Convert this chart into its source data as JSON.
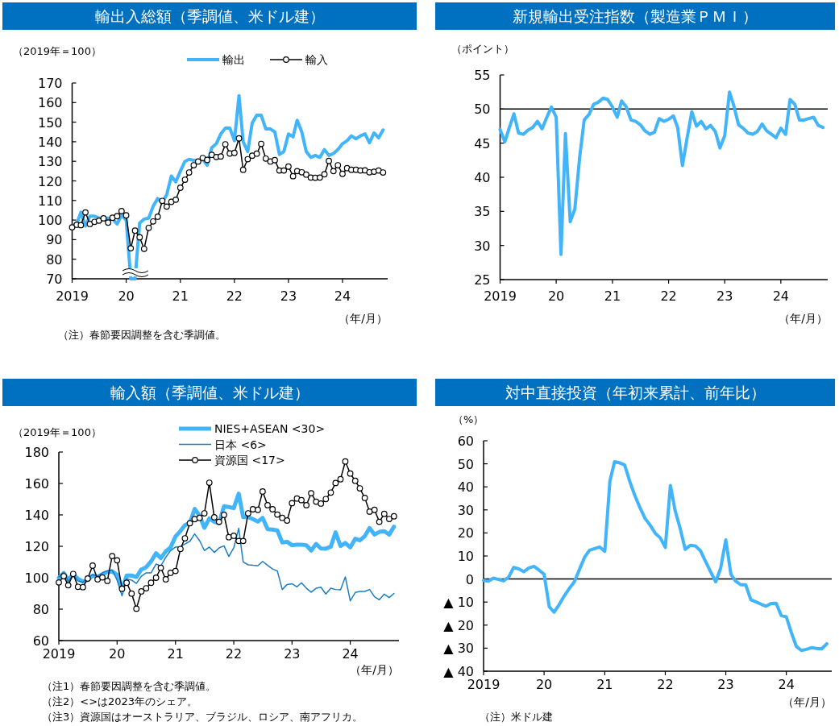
{
  "chart_data": [
    {
      "type": "line",
      "title": "輸出入総額（季調値、米ドル建）",
      "ylabel": "（2019年＝100）",
      "xlabel": "（年/月）",
      "legend": "top",
      "x": [
        "2019-01",
        "2019-02",
        "2019-03",
        "2019-04",
        "2019-05",
        "2019-06",
        "2019-07",
        "2019-08",
        "2019-09",
        "2019-10",
        "2019-11",
        "2019-12",
        "2020-01",
        "2020-02",
        "2020-03",
        "2020-04",
        "2020-05",
        "2020-06",
        "2020-07",
        "2020-08",
        "2020-09",
        "2020-10",
        "2020-11",
        "2020-12",
        "2021-01",
        "2021-02",
        "2021-03",
        "2021-04",
        "2021-05",
        "2021-06",
        "2021-07",
        "2021-08",
        "2021-09",
        "2021-10",
        "2021-11",
        "2021-12",
        "2022-01",
        "2022-02",
        "2022-03",
        "2022-04",
        "2022-05",
        "2022-06",
        "2022-07",
        "2022-08",
        "2022-09",
        "2022-10",
        "2022-11",
        "2022-12",
        "2023-01",
        "2023-02",
        "2023-03",
        "2023-04",
        "2023-05",
        "2023-06",
        "2023-07",
        "2023-08",
        "2023-09",
        "2023-10",
        "2023-11",
        "2023-12",
        "2024-01",
        "2024-02",
        "2024-03",
        "2024-04",
        "2024-05",
        "2024-06",
        "2024-07",
        "2024-08",
        "2024-09",
        "2024-10"
      ],
      "xlim": [
        "2019-01",
        "2024-11"
      ],
      "xticks": [
        {
          "value": "2019-01",
          "label": "2019"
        },
        {
          "value": "2020-01",
          "label": "20"
        },
        {
          "value": "2021-01",
          "label": "21"
        },
        {
          "value": "2022-01",
          "label": "22"
        },
        {
          "value": "2023-01",
          "label": "23"
        },
        {
          "value": "2024-01",
          "label": "24"
        }
      ],
      "ylim": [
        70,
        170
      ],
      "yticks": [
        70,
        80,
        90,
        100,
        110,
        120,
        130,
        140,
        150,
        160,
        170
      ],
      "series": [
        {
          "name": "輸出",
          "color": "#41b4fa",
          "values": [
            97,
            98,
            104,
            97,
            102,
            102,
            101,
            100,
            101,
            100.5,
            98,
            102.5,
            100,
            70,
            70,
            98.5,
            100.5,
            101,
            107,
            111,
            109,
            113,
            122.5,
            119.5,
            125,
            130,
            131,
            130.5,
            130,
            131,
            128,
            137,
            139,
            144,
            147,
            147,
            140.5,
            163.5,
            140,
            135,
            149.5,
            153.5,
            153.5,
            146.5,
            146.5,
            145,
            133.5,
            135,
            144,
            142.5,
            151,
            145,
            135,
            132,
            133,
            132,
            136,
            133,
            134,
            136,
            139,
            140.5,
            143,
            141.5,
            143,
            144,
            139.5,
            144.5,
            142,
            146
          ]
        },
        {
          "name": "輸入",
          "color": "#000000",
          "marker": "circle",
          "values": [
            96.3,
            97.6,
            97.4,
            103.9,
            98,
            99.1,
            99.7,
            100.9,
            98.7,
            101.2,
            102,
            104.6,
            102.4,
            85.6,
            94.6,
            91.2,
            85.3,
            96,
            99.3,
            101.7,
            109.8,
            106.9,
            109.3,
            110.4,
            116.5,
            120.6,
            124.3,
            128,
            129.9,
            131.7,
            130.7,
            133.3,
            132.2,
            132.5,
            138.7,
            134,
            134.3,
            141.7,
            125.7,
            131.1,
            132.9,
            133.9,
            138.9,
            131.4,
            129.9,
            130.6,
            125.3,
            125.3,
            127.3,
            122.4,
            125,
            124.4,
            123.2,
            121.7,
            121.6,
            121.7,
            123.4,
            130.2,
            125,
            128,
            123.6,
            126.5,
            125.7,
            125.7,
            125.3,
            125.4,
            124.4,
            124.7,
            125.3,
            124.3
          ]
        }
      ],
      "annotations": [
        "（注）春節要因調整を含む季調値。"
      ]
    },
    {
      "type": "line",
      "title": "新規輸出受注指数（製造業ＰＭＩ）",
      "ylabel": "（ポイント）",
      "xlabel": "（年/月）",
      "x": [
        "2019-01",
        "2019-02",
        "2019-03",
        "2019-04",
        "2019-05",
        "2019-06",
        "2019-07",
        "2019-08",
        "2019-09",
        "2019-10",
        "2019-11",
        "2019-12",
        "2020-01",
        "2020-02",
        "2020-03",
        "2020-04",
        "2020-05",
        "2020-06",
        "2020-07",
        "2020-08",
        "2020-09",
        "2020-10",
        "2020-11",
        "2020-12",
        "2021-01",
        "2021-02",
        "2021-03",
        "2021-04",
        "2021-05",
        "2021-06",
        "2021-07",
        "2021-08",
        "2021-09",
        "2021-10",
        "2021-11",
        "2021-12",
        "2022-01",
        "2022-02",
        "2022-03",
        "2022-04",
        "2022-05",
        "2022-06",
        "2022-07",
        "2022-08",
        "2022-09",
        "2022-10",
        "2022-11",
        "2022-12",
        "2023-01",
        "2023-02",
        "2023-03",
        "2023-04",
        "2023-05",
        "2023-06",
        "2023-07",
        "2023-08",
        "2023-09",
        "2023-10",
        "2023-11",
        "2023-12",
        "2024-01",
        "2024-02",
        "2024-03",
        "2024-04",
        "2024-05",
        "2024-06",
        "2024-07",
        "2024-08",
        "2024-09",
        "2024-10"
      ],
      "xlim": [
        "2019-01",
        "2024-11"
      ],
      "xticks": [
        {
          "value": "2019-01",
          "label": "2019"
        },
        {
          "value": "2020-01",
          "label": "20"
        },
        {
          "value": "2021-01",
          "label": "21"
        },
        {
          "value": "2022-01",
          "label": "22"
        },
        {
          "value": "2023-01",
          "label": "23"
        },
        {
          "value": "2024-01",
          "label": "24"
        }
      ],
      "ylim": [
        25,
        55
      ],
      "yticks": [
        25,
        30,
        35,
        40,
        45,
        50,
        55
      ],
      "ref_lines": [
        {
          "axis": "y",
          "value": 50,
          "color": "#000000"
        }
      ],
      "series": [
        {
          "color": "#41b4fa",
          "values": [
            47,
            45.2,
            47.2,
            49.3,
            46.5,
            46.3,
            46.9,
            47.3,
            48.2,
            47.1,
            48.8,
            50.3,
            48.8,
            28.7,
            46.4,
            33.5,
            35.3,
            42.8,
            48.4,
            49.2,
            50.7,
            51,
            51.6,
            51.4,
            50.3,
            48.8,
            51.2,
            50.3,
            48.4,
            48.2,
            47.7,
            46.8,
            46.3,
            46.6,
            48.6,
            48.2,
            48.5,
            49,
            47.3,
            41.7,
            45.7,
            49.6,
            47.5,
            48.2,
            47.1,
            47.6,
            46.7,
            44.3,
            46.1,
            52.5,
            50.5,
            47.7,
            47.2,
            46.5,
            46.3,
            46.7,
            47.8,
            46.8,
            46.3,
            45.8,
            47.2,
            46.3,
            51.4,
            50.7,
            48.4,
            48.4,
            48.6,
            48.8,
            47.6,
            47.3
          ]
        }
      ]
    },
    {
      "type": "line",
      "title": "輸入額（季調値、米ドル建）",
      "ylabel": "（2019年＝100）",
      "xlabel": "（年/月）",
      "legend": "top",
      "x": [
        "2019-01",
        "2019-02",
        "2019-03",
        "2019-04",
        "2019-05",
        "2019-06",
        "2019-07",
        "2019-08",
        "2019-09",
        "2019-10",
        "2019-11",
        "2019-12",
        "2020-01",
        "2020-02",
        "2020-03",
        "2020-04",
        "2020-05",
        "2020-06",
        "2020-07",
        "2020-08",
        "2020-09",
        "2020-10",
        "2020-11",
        "2020-12",
        "2021-01",
        "2021-02",
        "2021-03",
        "2021-04",
        "2021-05",
        "2021-06",
        "2021-07",
        "2021-08",
        "2021-09",
        "2021-10",
        "2021-11",
        "2021-12",
        "2022-01",
        "2022-02",
        "2022-03",
        "2022-04",
        "2022-05",
        "2022-06",
        "2022-07",
        "2022-08",
        "2022-09",
        "2022-10",
        "2022-11",
        "2022-12",
        "2023-01",
        "2023-02",
        "2023-03",
        "2023-04",
        "2023-05",
        "2023-06",
        "2023-07",
        "2023-08",
        "2023-09",
        "2023-10",
        "2023-11",
        "2023-12",
        "2024-01",
        "2024-02",
        "2024-03",
        "2024-04",
        "2024-05",
        "2024-06",
        "2024-07",
        "2024-08",
        "2024-09",
        "2024-10"
      ],
      "xlim": [
        "2019-01",
        "2024-11"
      ],
      "xticks": [
        {
          "value": "2019-01",
          "label": "2019"
        },
        {
          "value": "2020-01",
          "label": "20"
        },
        {
          "value": "2021-01",
          "label": "21"
        },
        {
          "value": "2022-01",
          "label": "22"
        },
        {
          "value": "2023-01",
          "label": "23"
        },
        {
          "value": "2024-01",
          "label": "24"
        }
      ],
      "ylim": [
        60,
        180
      ],
      "yticks": [
        60,
        80,
        100,
        120,
        140,
        160,
        180
      ],
      "series": [
        {
          "name": "NIES+ASEAN <30>",
          "color": "#41b4fa",
          "values": [
            100,
            103,
            98.5,
            102.5,
            99.3,
            97.6,
            98.5,
            101.4,
            100.7,
            102.2,
            103.6,
            104,
            101.9,
            92.5,
            101.4,
            101.4,
            100.5,
            105.3,
            106.7,
            110.4,
            115.6,
            112.5,
            116.8,
            119.3,
            126.3,
            129.7,
            133.5,
            134.9,
            143.8,
            139.5,
            131.8,
            137.8,
            135.6,
            134.7,
            145.5,
            145,
            144.3,
            153.5,
            138.6,
            138.6,
            137.3,
            135.7,
            138.1,
            130.9,
            130.6,
            130.1,
            122.4,
            122.9,
            120.7,
            121,
            121,
            120.7,
            117.3,
            121.5,
            118.6,
            118.5,
            119.8,
            128.9,
            120.2,
            122.1,
            119.3,
            124.8,
            123.8,
            126.5,
            131.6,
            127.5,
            129.2,
            129.6,
            127.5,
            132.5
          ]
        },
        {
          "name": "日本 <6>",
          "color": "#1a7ec6",
          "values": [
            100.5,
            103.6,
            97.6,
            101.9,
            97.9,
            97.1,
            100.2,
            101.9,
            100.7,
            103.2,
            104.4,
            105,
            98.5,
            88.5,
            99.3,
            98.5,
            96.4,
            101,
            103.1,
            103.1,
            108.7,
            107.5,
            113,
            117.3,
            119.5,
            119.8,
            121.5,
            123.2,
            127.9,
            123.6,
            117.3,
            119.5,
            116.1,
            119,
            120.3,
            113.5,
            119,
            131.5,
            110.1,
            108.2,
            107.9,
            107.7,
            110.4,
            107.9,
            105.6,
            104.3,
            92.5,
            95.7,
            96.2,
            94.2,
            96.8,
            93.3,
            90.8,
            93.3,
            94,
            89.6,
            93.3,
            92.5,
            92.3,
            100.5,
            85.3,
            90.6,
            91.3,
            91.3,
            92.5,
            87.9,
            86,
            89.6,
            87.4,
            90
          ]
        },
        {
          "name": "資源国 <17>",
          "color": "#000000",
          "marker": "circle",
          "values": [
            97,
            101,
            95.2,
            102.4,
            94.2,
            94,
            99.5,
            107.7,
            99,
            100.2,
            98,
            113.8,
            111.1,
            93,
            96.8,
            89.9,
            80.3,
            91.3,
            93.3,
            96.8,
            100,
            106.3,
            99,
            103.1,
            104.3,
            118.3,
            125.1,
            134.7,
            137.3,
            138.1,
            141,
            160.5,
            138.5,
            135.6,
            140,
            125.8,
            126.7,
            123.4,
            123.4,
            141,
            143.6,
            143.2,
            154.9,
            146.2,
            143.6,
            140.2,
            138.1,
            136.4,
            147.5,
            150.4,
            149.4,
            146.2,
            153.8,
            148.4,
            147.2,
            150.1,
            154.2,
            160.3,
            162.7,
            174,
            166.3,
            161.7,
            156.9,
            150.8,
            142.1,
            143.2,
            135.6,
            140.7,
            137.4,
            139.1
          ]
        }
      ],
      "annotations": [
        "（注1）春節要因調整を含む季調値。",
        "（注2）<>は2023年のシェア。",
        "（注3）資源国はオーストラリア、ブラジル、ロシア、南アフリカ。"
      ]
    },
    {
      "type": "line",
      "title": "対中直接投資（年初来累計、前年比）",
      "ylabel": "（%）",
      "xlabel": "（年/月）",
      "x": [
        "2019-01",
        "2019-02",
        "2019-03",
        "2019-04",
        "2019-05",
        "2019-06",
        "2019-07",
        "2019-08",
        "2019-09",
        "2019-10",
        "2019-11",
        "2019-12",
        "2020-01",
        "2020-02",
        "2020-03",
        "2020-04",
        "2020-05",
        "2020-06",
        "2020-07",
        "2020-08",
        "2020-09",
        "2020-10",
        "2020-11",
        "2020-12",
        "2021-01",
        "2021-02",
        "2021-03",
        "2021-04",
        "2021-05",
        "2021-06",
        "2021-07",
        "2021-08",
        "2021-09",
        "2021-10",
        "2021-11",
        "2021-12",
        "2022-01",
        "2022-02",
        "2022-03",
        "2022-04",
        "2022-05",
        "2022-06",
        "2022-07",
        "2022-08",
        "2022-09",
        "2022-10",
        "2022-11",
        "2022-12",
        "2023-01",
        "2023-02",
        "2023-03",
        "2023-04",
        "2023-05",
        "2023-06",
        "2023-07",
        "2023-08",
        "2023-09",
        "2023-10",
        "2023-11",
        "2023-12",
        "2024-01",
        "2024-02",
        "2024-03",
        "2024-04",
        "2024-05",
        "2024-06",
        "2024-07",
        "2024-08",
        "2024-09"
      ],
      "xlim": [
        "2019-01",
        "2024-10"
      ],
      "xticks": [
        {
          "value": "2019-01",
          "label": "2019"
        },
        {
          "value": "2020-01",
          "label": "20"
        },
        {
          "value": "2021-01",
          "label": "21"
        },
        {
          "value": "2022-01",
          "label": "22"
        },
        {
          "value": "2023-01",
          "label": "23"
        },
        {
          "value": "2024-01",
          "label": "24"
        }
      ],
      "ylim": [
        -40,
        60
      ],
      "yticks": [
        {
          "value": -40,
          "label": "▲ 40"
        },
        {
          "value": -30,
          "label": "▲ 30"
        },
        {
          "value": -20,
          "label": "▲ 20"
        },
        {
          "value": -10,
          "label": "▲ 10"
        },
        0,
        10,
        20,
        30,
        40,
        50,
        60
      ],
      "ref_lines": [
        {
          "axis": "y",
          "value": 0,
          "color": "#000000"
        }
      ],
      "series": [
        {
          "color": "#41b4fa",
          "values": [
            -0.6,
            -0.9,
            0.4,
            -0.2,
            -0.8,
            0.8,
            5,
            4.4,
            3.2,
            4.8,
            5.5,
            3.9,
            2.1,
            -12,
            -14.4,
            -11.1,
            -7.4,
            -4.1,
            -1.3,
            4.1,
            9.4,
            12.5,
            13.2,
            13.9,
            12,
            42.5,
            50.9,
            50.4,
            49.5,
            42.3,
            36.3,
            31,
            26.3,
            23.4,
            19.9,
            17.9,
            13.7,
            40.6,
            29.8,
            21.9,
            12.9,
            14.6,
            14.4,
            12.3,
            7.6,
            3.2,
            -1.2,
            4.7,
            17,
            2,
            -0.9,
            -2.5,
            -2.5,
            -9,
            -9.9,
            -10.9,
            -11.8,
            -10.6,
            -10.5,
            -15.8,
            -16.4,
            -23.4,
            -29.2,
            -31,
            -30.5,
            -29.8,
            -30.1,
            -30.3,
            -28.1
          ]
        }
      ],
      "annotations": [
        "（注）米ドル建"
      ]
    }
  ]
}
